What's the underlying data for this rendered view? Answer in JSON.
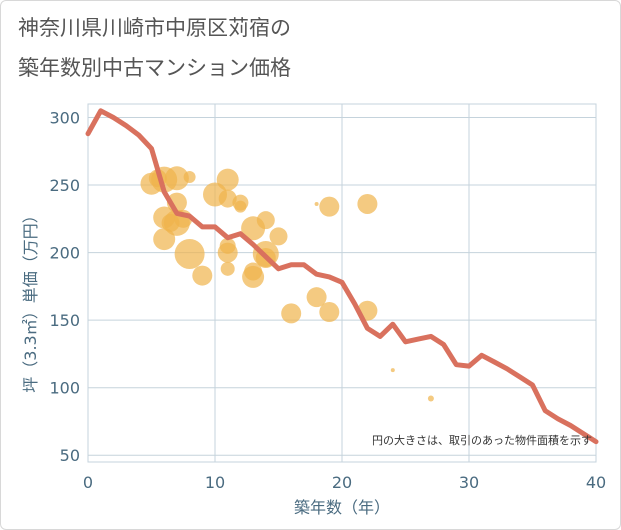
{
  "title_line1": "神奈川県川崎市中原区苅宿の",
  "title_line2": "築年数別中古マンション価格",
  "chart_data": {
    "type": "scatter",
    "xlabel": "築年数（年）",
    "ylabel": "坪（3.3㎡）単価（万円）",
    "xlim": [
      0,
      40
    ],
    "ylim": [
      45,
      310
    ],
    "xticks": [
      0,
      10,
      20,
      30,
      40
    ],
    "yticks": [
      50,
      100,
      150,
      200,
      250,
      300
    ],
    "grid": true,
    "annotation": "円の大きさは、取引のあった物件面積を示す",
    "colors": {
      "bubble": "#f0b44c",
      "line": "#d9715e",
      "grid": "#c5d3dc",
      "axis_text": "#4a6b80"
    },
    "line_series": {
      "x": [
        0,
        1,
        2,
        3,
        4,
        5,
        6,
        7,
        8,
        9,
        10,
        11,
        12,
        13,
        14,
        15,
        16,
        17,
        18,
        19,
        20,
        21,
        22,
        23,
        24,
        25,
        26,
        27,
        28,
        29,
        30,
        31,
        32,
        33,
        34,
        35,
        36,
        37,
        38,
        39,
        40
      ],
      "y": [
        288,
        305,
        300,
        294,
        287,
        277,
        245,
        229,
        227,
        219,
        219,
        211,
        214,
        206,
        197,
        188,
        191,
        191,
        184,
        182,
        178,
        162,
        144,
        138,
        147,
        134,
        136,
        138,
        132,
        117,
        116,
        124,
        119,
        114,
        108,
        102,
        83,
        77,
        72,
        66,
        60
      ]
    },
    "bubbles": [
      {
        "x": 5,
        "y": 251,
        "size": 11
      },
      {
        "x": 5.5,
        "y": 255,
        "size": 9
      },
      {
        "x": 6,
        "y": 254,
        "size": 13
      },
      {
        "x": 6,
        "y": 226,
        "size": 11
      },
      {
        "x": 6,
        "y": 210,
        "size": 11
      },
      {
        "x": 6.5,
        "y": 222,
        "size": 9
      },
      {
        "x": 7,
        "y": 255,
        "size": 12
      },
      {
        "x": 7,
        "y": 237,
        "size": 10
      },
      {
        "x": 7,
        "y": 222,
        "size": 13
      },
      {
        "x": 7.5,
        "y": 225,
        "size": 9
      },
      {
        "x": 8,
        "y": 256,
        "size": 6
      },
      {
        "x": 8,
        "y": 199,
        "size": 15
      },
      {
        "x": 9,
        "y": 183,
        "size": 10
      },
      {
        "x": 10,
        "y": 243,
        "size": 12
      },
      {
        "x": 11,
        "y": 254,
        "size": 11
      },
      {
        "x": 11,
        "y": 240,
        "size": 9
      },
      {
        "x": 11,
        "y": 205,
        "size": 8
      },
      {
        "x": 11,
        "y": 200,
        "size": 10
      },
      {
        "x": 11,
        "y": 188,
        "size": 7
      },
      {
        "x": 12,
        "y": 237,
        "size": 8
      },
      {
        "x": 12,
        "y": 234,
        "size": 6
      },
      {
        "x": 13,
        "y": 218,
        "size": 12
      },
      {
        "x": 13,
        "y": 186,
        "size": 9
      },
      {
        "x": 13,
        "y": 182,
        "size": 11
      },
      {
        "x": 14,
        "y": 224,
        "size": 9
      },
      {
        "x": 14,
        "y": 199,
        "size": 13
      },
      {
        "x": 14,
        "y": 196,
        "size": 10
      },
      {
        "x": 15,
        "y": 212,
        "size": 9
      },
      {
        "x": 16,
        "y": 155,
        "size": 10
      },
      {
        "x": 18,
        "y": 236,
        "size": 2
      },
      {
        "x": 18,
        "y": 167,
        "size": 10
      },
      {
        "x": 19,
        "y": 234,
        "size": 10
      },
      {
        "x": 19,
        "y": 156,
        "size": 10
      },
      {
        "x": 22,
        "y": 236,
        "size": 10
      },
      {
        "x": 22,
        "y": 157,
        "size": 10
      },
      {
        "x": 24,
        "y": 113,
        "size": 2
      },
      {
        "x": 27,
        "y": 92,
        "size": 3
      }
    ]
  }
}
